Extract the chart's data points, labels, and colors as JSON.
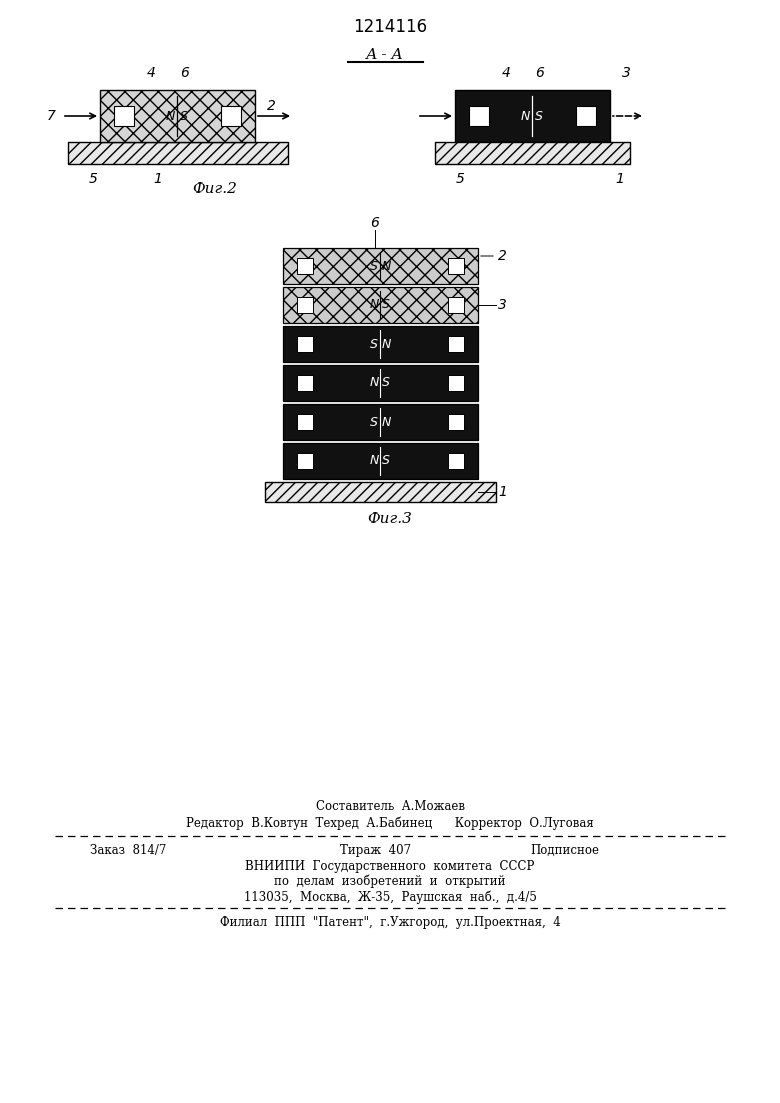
{
  "title": "1214116",
  "fig2_label": "Фиг.2",
  "fig3_label": "Фиг.3",
  "aa_label": "А - А",
  "footer": {
    "line1": "Составитель  А.Можаев",
    "line2": "Редактор  В.Ковтун  Техред  А.Бабинец      Корректор  О.Луговая",
    "line3a": "Заказ  814/7",
    "line3b": "Тираж  407",
    "line3c": "Подписное",
    "line4": "ВНИИПИ  Государственного  комитета  СССР",
    "line5": "по  делам  изобретений  и  открытий",
    "line6": "113035,  Москва,  Ж-35,  Раушская  наб.,  д.4/5",
    "line7": "Филиал  ППП  \"Патент\",  г.Ужгород,  ул.Проектная,  4"
  }
}
